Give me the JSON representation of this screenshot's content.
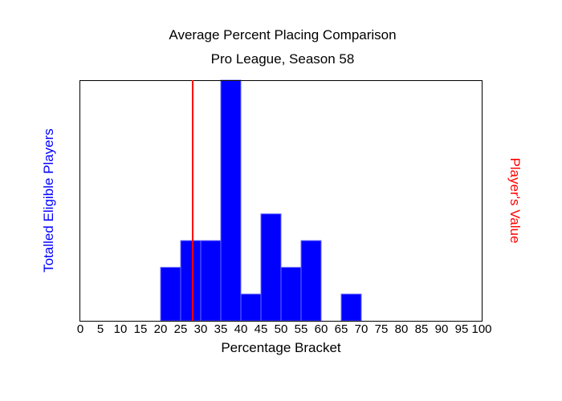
{
  "chart_data": {
    "type": "bar",
    "title": "Average Percent Placing Comparison",
    "subtitle": "Pro League, Season 58",
    "xlabel": "Percentage Bracket",
    "ylabel": "Totalled Eligible Players",
    "y2label": "Player's Value",
    "xlim": [
      0,
      100
    ],
    "ylim": [
      0,
      9
    ],
    "bin_width": 5,
    "x_ticks": [
      "0",
      "5",
      "10",
      "15",
      "20",
      "25",
      "30",
      "35",
      "40",
      "45",
      "50",
      "55",
      "60",
      "65",
      "70",
      "75",
      "80",
      "85",
      "90",
      "95",
      "100"
    ],
    "bins": [
      {
        "start": 20,
        "value": 2
      },
      {
        "start": 25,
        "value": 3
      },
      {
        "start": 30,
        "value": 3
      },
      {
        "start": 35,
        "value": 9
      },
      {
        "start": 40,
        "value": 1
      },
      {
        "start": 45,
        "value": 4
      },
      {
        "start": 50,
        "value": 2
      },
      {
        "start": 55,
        "value": 3
      },
      {
        "start": 65,
        "value": 1
      }
    ],
    "player_value": 28,
    "grid": false,
    "colors": {
      "bar": "#0000ff",
      "bar_edge": "#6a6aff",
      "player_line": "#ff0000",
      "ylabel": "#0000ff",
      "y2label": "#ff0000"
    }
  }
}
